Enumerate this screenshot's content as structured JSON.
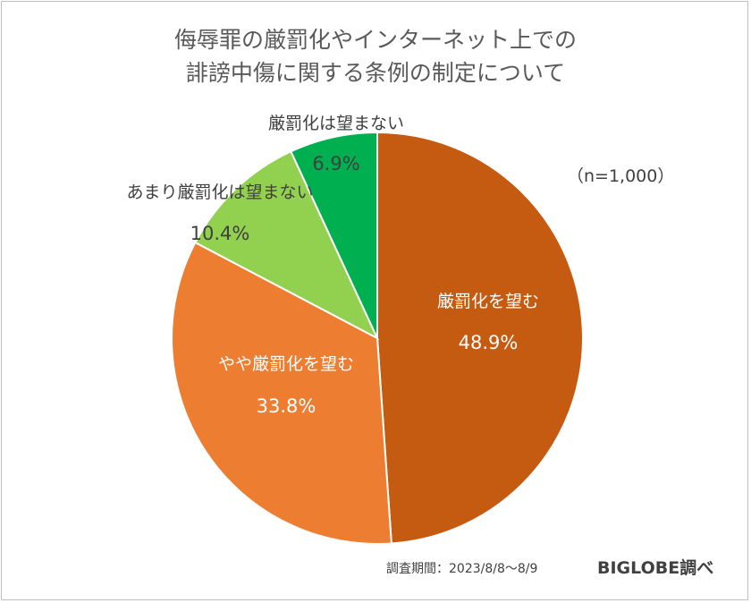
{
  "chart_data": {
    "type": "pie",
    "title": [
      "侮辱罪の厳罰化やインターネット上での",
      "誹謗中傷に関する条例の制定について"
    ],
    "sample_size": "（n=1,000）",
    "slices": [
      {
        "label": "厳罰化を望む",
        "value": 48.9,
        "value_label": "48.9%",
        "color": "#C55A11",
        "text_color": "#ffffff"
      },
      {
        "label": "やや厳罰化を望む",
        "value": 33.8,
        "value_label": "33.8%",
        "color": "#ED7D31",
        "text_color": "#ffffff"
      },
      {
        "label": "あまり厳罰化は望まない",
        "value": 10.4,
        "value_label": "10.4%",
        "color": "#92D050",
        "text_color": "#404040"
      },
      {
        "label": "厳罰化は望まない",
        "value": 6.9,
        "value_label": "6.9%",
        "color": "#00B050",
        "text_color": "#404040"
      }
    ],
    "start_angle_deg": 0,
    "direction": "clockwise"
  },
  "footer": {
    "period": "調査期間：2023/8/8～8/9",
    "source": "BIGLOBE調べ"
  }
}
